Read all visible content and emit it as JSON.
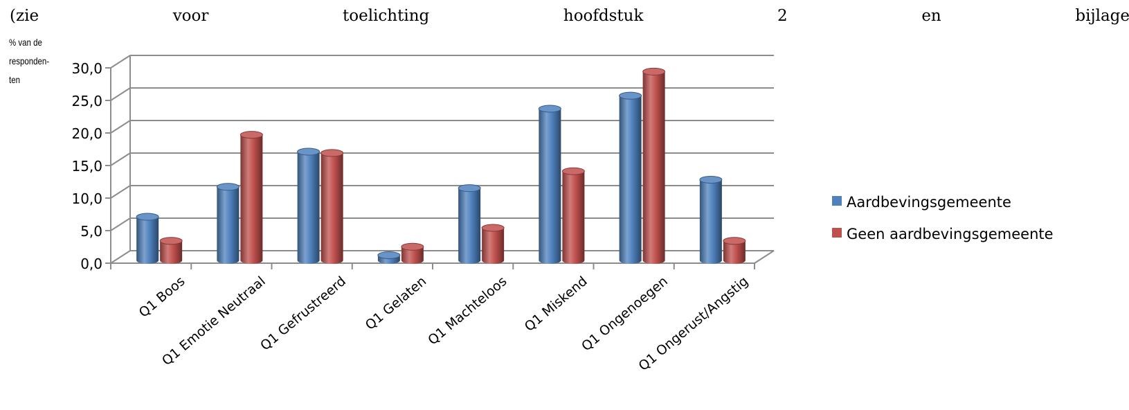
{
  "intro_text": {
    "words": [
      "(zie",
      "voor",
      "toelichting",
      "hoofdstuk",
      "2",
      "en",
      "bijlage"
    ]
  },
  "chart_data": {
    "type": "bar",
    "style": "3d-cylinder",
    "title": "",
    "ylabel_lines": [
      "% van de",
      "responden-",
      "ten"
    ],
    "xlabel": "",
    "ylim": [
      0,
      30
    ],
    "ytick_labels": [
      "0,0",
      "5,0",
      "10,0",
      "15,0",
      "20,0",
      "25,0",
      "30,0"
    ],
    "categories": [
      "Q1 Boos",
      "Q1 Emotie Neutraal",
      "Q1 Gefrustreerd",
      "Q1 Gelaten",
      "Q1 Machteloos",
      "Q1 Miskend",
      "Q1 Ongenoegen",
      "Q1 Ongerust/Angstig"
    ],
    "series": [
      {
        "name": "Aardbevingsgemeente",
        "color": "#4F81BD",
        "values": [
          6.7,
          11.3,
          16.7,
          0.8,
          11.1,
          23.3,
          25.3,
          12.4
        ]
      },
      {
        "name": "Geen aardbevingsgemeente",
        "color": "#C0504D",
        "values": [
          3.0,
          19.3,
          16.5,
          2.1,
          5.0,
          13.7,
          29.0,
          3.0
        ]
      }
    ],
    "grid": true,
    "legend_position": "right"
  }
}
